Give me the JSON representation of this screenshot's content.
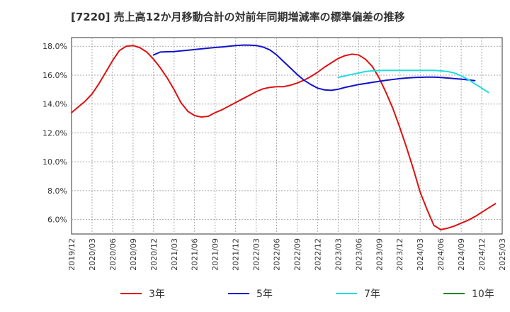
{
  "chart_data": {
    "type": "line",
    "title": "[7220]  売上高12か月移動合計の対前年同期増減率の標準偏差の推移",
    "xlabel": "",
    "ylabel": "",
    "ylim": [
      5.0,
      18.6
    ],
    "yticks": [
      6.0,
      8.0,
      10.0,
      12.0,
      14.0,
      16.0,
      18.0
    ],
    "y_tick_labels": [
      "6.0%",
      "8.0%",
      "10.0%",
      "12.0%",
      "14.0%",
      "16.0%",
      "18.0%"
    ],
    "x_tick_labels": [
      "2019/12",
      "2020/03",
      "2020/06",
      "2020/09",
      "2020/12",
      "2021/03",
      "2021/06",
      "2021/09",
      "2021/12",
      "2022/03",
      "2022/06",
      "2022/09",
      "2022/12",
      "2023/03",
      "2023/06",
      "2023/09",
      "2023/12",
      "2024/03",
      "2024/06",
      "2024/09",
      "2024/12",
      "2025/03"
    ],
    "grid": true,
    "legend_position": "bottom",
    "series": [
      {
        "name": "3年",
        "color": "#dd1111",
        "start_index": 0,
        "values": [
          13.4,
          13.8,
          14.2,
          14.7,
          15.4,
          16.2,
          17.0,
          17.7,
          18.0,
          18.05,
          17.9,
          17.6,
          17.1,
          16.5,
          15.8,
          15.0,
          14.1,
          13.5,
          13.2,
          13.1,
          13.15,
          13.4,
          13.6,
          13.85,
          14.1,
          14.35,
          14.6,
          14.85,
          15.05,
          15.15,
          15.2,
          15.2,
          15.3,
          15.45,
          15.65,
          15.9,
          16.2,
          16.55,
          16.85,
          17.15,
          17.35,
          17.45,
          17.4,
          17.1,
          16.6,
          15.8,
          14.8,
          13.7,
          12.4,
          11.0,
          9.5,
          7.9,
          6.7,
          5.6,
          5.3,
          5.4,
          5.55,
          5.75,
          5.95,
          6.2,
          6.5,
          6.8,
          7.1
        ]
      },
      {
        "name": "5年",
        "color": "#1111cc",
        "start_index": 12,
        "values": [
          17.4,
          17.6,
          17.62,
          17.63,
          17.68,
          17.72,
          17.77,
          17.82,
          17.87,
          17.91,
          17.95,
          18.0,
          18.05,
          18.08,
          18.08,
          18.05,
          17.95,
          17.75,
          17.4,
          16.95,
          16.5,
          16.05,
          15.65,
          15.35,
          15.1,
          14.98,
          14.95,
          15.02,
          15.15,
          15.25,
          15.35,
          15.42,
          15.5,
          15.57,
          15.64,
          15.7,
          15.76,
          15.8,
          15.83,
          15.85,
          15.86,
          15.86,
          15.84,
          15.8,
          15.76,
          15.72,
          15.67,
          15.62
        ]
      },
      {
        "name": "7年",
        "color": "#22dddd",
        "start_index": 39,
        "values": [
          15.85,
          15.95,
          16.05,
          16.15,
          16.25,
          16.3,
          16.32,
          16.33,
          16.33,
          16.33,
          16.33,
          16.33,
          16.33,
          16.33,
          16.33,
          16.3,
          16.25,
          16.15,
          15.95,
          15.7,
          15.4,
          15.1,
          14.8
        ]
      },
      {
        "name": "10年",
        "color": "#228822",
        "start_index": 0,
        "values": []
      }
    ]
  }
}
